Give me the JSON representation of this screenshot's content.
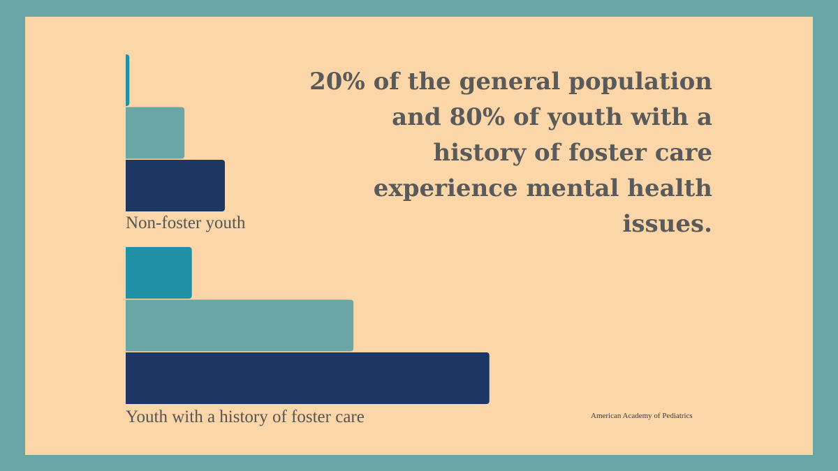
{
  "headline": "20% of the general population and 80% of youth with a history of foster care experience mental health issues.",
  "source": "American Academy of Pediatrics",
  "colors": {
    "border": "#6ba6a6",
    "background": "#fad6a8",
    "text": "#5a5a5a"
  },
  "chart_data": {
    "type": "bar",
    "orientation": "horizontal",
    "categories": [
      "Non-foster youth",
      "Youth with a history of foster care"
    ],
    "series": [
      {
        "color": "#2191a5",
        "values": [
          1,
          18
        ]
      },
      {
        "color": "#6ba6a6",
        "values": [
          16,
          62
        ]
      },
      {
        "color": "#1c3763",
        "values": [
          27,
          99
        ]
      }
    ],
    "xlim": [
      0,
      100
    ],
    "grid": false,
    "legend": "none"
  }
}
